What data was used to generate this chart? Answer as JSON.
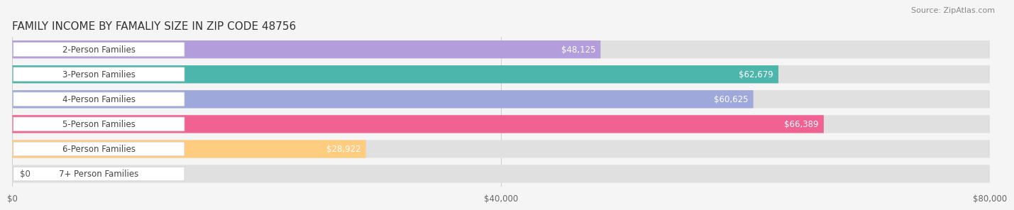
{
  "title": "FAMILY INCOME BY FAMALIY SIZE IN ZIP CODE 48756",
  "source": "Source: ZipAtlas.com",
  "categories": [
    "2-Person Families",
    "3-Person Families",
    "4-Person Families",
    "5-Person Families",
    "6-Person Families",
    "7+ Person Families"
  ],
  "values": [
    48125,
    62679,
    60625,
    66389,
    28922,
    0
  ],
  "bar_colors": [
    "#b39ddb",
    "#4db6ac",
    "#9fa8da",
    "#f06292",
    "#ffcc80",
    "#ef9a9a"
  ],
  "xmax": 80000,
  "xticks": [
    0,
    40000,
    80000
  ],
  "xticklabels": [
    "$0",
    "$40,000",
    "$80,000"
  ],
  "background_color": "#f5f5f5",
  "bar_background": "#e0e0e0",
  "title_fontsize": 11,
  "label_fontsize": 8.5,
  "value_fontsize": 8.5,
  "source_fontsize": 8
}
